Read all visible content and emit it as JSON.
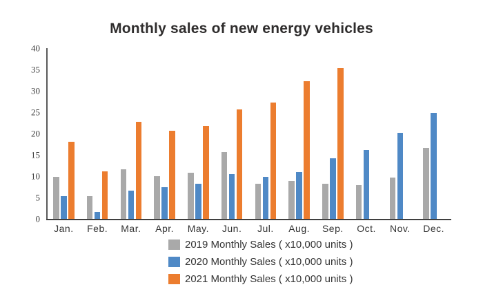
{
  "title": "Monthly sales of new energy vehicles",
  "colors": {
    "series_2019": "#a9a9a9",
    "series_2020": "#4f89c6",
    "series_2021": "#ec7d2f",
    "y_axis_line": "#595959",
    "x_axis_line": "#3f3f3f",
    "text": "#333333"
  },
  "chart_data": {
    "type": "bar",
    "title": "Monthly sales of new energy vehicles",
    "categories": [
      "Jan.",
      "Feb.",
      "Mar.",
      "Apr.",
      "May.",
      "Jun.",
      "Jul.",
      "Aug.",
      "Sep.",
      "Oct.",
      "Nov.",
      "Dec."
    ],
    "series": [
      {
        "name": "2019",
        "label": "2019 Monthly Sales ( x10,000 units )",
        "color": "#a9a9a9",
        "values": [
          9.8,
          5.4,
          11.6,
          10.0,
          10.8,
          15.6,
          8.3,
          8.8,
          8.2,
          7.9,
          9.7,
          16.6
        ]
      },
      {
        "name": "2020",
        "label": "2020 Monthly Sales ( x10,000 units )",
        "color": "#4f89c6",
        "values": [
          5.4,
          1.6,
          6.6,
          7.4,
          8.2,
          10.5,
          9.8,
          11.0,
          14.2,
          16.1,
          20.1,
          24.9
        ]
      },
      {
        "name": "2021",
        "label": "2021 Monthly Sales ( x10,000 units )",
        "color": "#ec7d2f",
        "values": [
          18.0,
          11.1,
          22.8,
          20.6,
          21.8,
          25.7,
          27.2,
          32.2,
          35.4,
          null,
          null,
          null
        ]
      }
    ],
    "xlabel": "",
    "ylabel": "",
    "ylim": [
      0,
      40
    ],
    "yticks": [
      0,
      5,
      10,
      15,
      20,
      25,
      30,
      35,
      40
    ],
    "grid": false,
    "legend_position": "bottom"
  }
}
